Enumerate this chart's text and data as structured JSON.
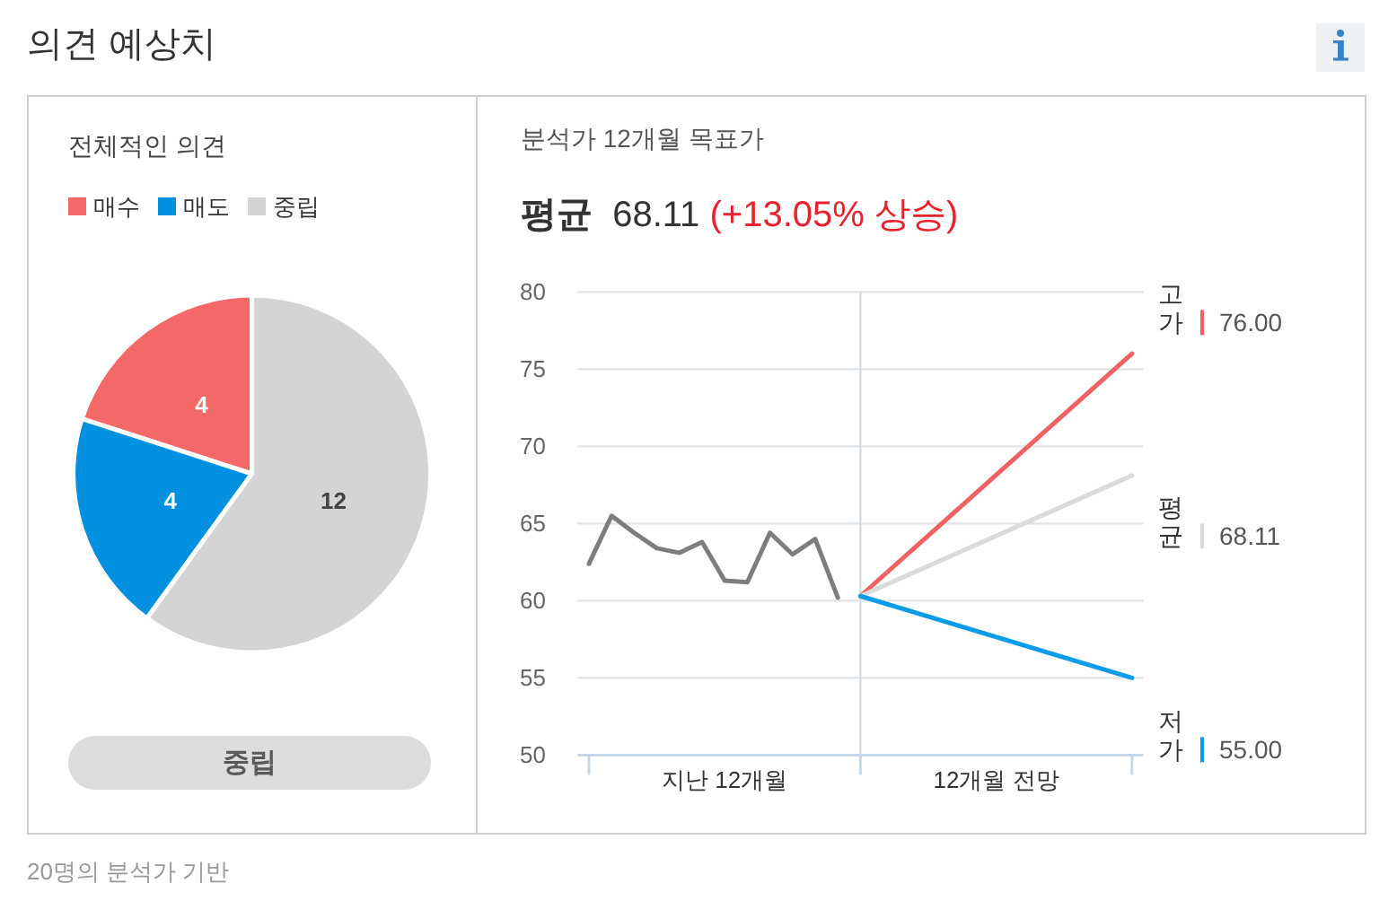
{
  "chart_data": [
    {
      "type": "other",
      "title": "의견 예상치",
      "annotations": [
        "20명의 분석가 기반"
      ]
    },
    {
      "type": "pie",
      "title": "전체적인 의견",
      "categories": [
        "매수",
        "매도",
        "중립"
      ],
      "values": [
        4,
        4,
        12
      ],
      "colors": [
        "#f46868",
        "#0090e0",
        "#d4d4d4"
      ],
      "data_labels": true,
      "legend": "top left",
      "annotations": [
        "중립"
      ]
    },
    {
      "type": "line",
      "title": "분석가 12개월 목표가",
      "subtitle": "평균 68.11 (+13.05% 상승)",
      "categories": [
        null,
        null,
        null,
        null,
        null,
        null,
        "지난 12개월",
        null,
        null,
        null,
        null,
        null,
        null,
        null,
        null,
        null,
        null,
        null,
        "12개월 전망",
        null,
        null,
        null,
        null,
        null,
        null
      ],
      "ylim": [
        50,
        80
      ],
      "yticks": [
        50,
        55,
        60,
        65,
        70,
        75,
        80
      ],
      "grid": true,
      "legend": "right",
      "annotations": [
        "76.00",
        "68.11",
        "55.00"
      ],
      "series": [
        {
          "color": "#7d7d7d",
          "values": [
            62.4,
            65.5,
            64.4,
            63.4,
            63.1,
            63.8,
            61.3,
            61.2,
            64.4,
            63.0,
            64.0,
            60.2,
            null,
            null,
            null,
            null,
            null,
            null,
            null,
            null,
            null,
            null,
            null,
            null,
            null
          ]
        },
        {
          "name": "고가",
          "color": "#f06262",
          "values": [
            null,
            null,
            null,
            null,
            null,
            null,
            null,
            null,
            null,
            null,
            null,
            null,
            60.3,
            null,
            null,
            null,
            null,
            null,
            null,
            null,
            null,
            null,
            null,
            null,
            76
          ]
        },
        {
          "name": "평균",
          "color": "#dadada",
          "values": [
            null,
            null,
            null,
            null,
            null,
            null,
            null,
            null,
            null,
            null,
            null,
            null,
            60.3,
            null,
            null,
            null,
            null,
            null,
            null,
            null,
            null,
            null,
            null,
            null,
            68.11
          ]
        },
        {
          "name": "저가",
          "color": "#0b9ce8",
          "values": [
            null,
            null,
            null,
            null,
            null,
            null,
            null,
            null,
            null,
            null,
            null,
            null,
            60.3,
            null,
            null,
            null,
            null,
            null,
            null,
            null,
            null,
            null,
            null,
            null,
            55
          ]
        }
      ]
    }
  ]
}
